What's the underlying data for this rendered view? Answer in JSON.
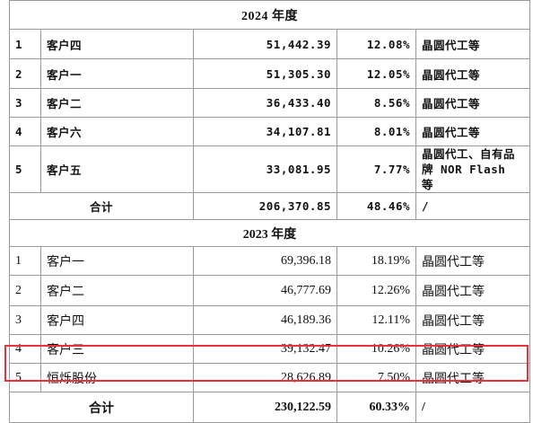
{
  "sections": [
    {
      "title": "2024 年度",
      "rows": [
        [
          "1",
          "客户四",
          "51,442.39",
          "12.08%",
          "晶圆代工等"
        ],
        [
          "2",
          "客户一",
          "51,305.30",
          "12.05%",
          "晶圆代工等"
        ],
        [
          "3",
          "客户二",
          "36,433.40",
          "8.56%",
          "晶圆代工等"
        ],
        [
          "4",
          "客户六",
          "34,107.81",
          "8.01%",
          "晶圆代工等"
        ],
        [
          "5",
          "客户五",
          "33,081.95",
          "7.77%",
          "晶圆代工、自有品牌 NOR Flash 等"
        ]
      ],
      "total": [
        "合计",
        "206,370.85",
        "48.46%",
        "/"
      ]
    },
    {
      "title": "2023 年度",
      "rows": [
        [
          "1",
          "客户一",
          "69,396.18",
          "18.19%",
          "晶圆代工等"
        ],
        [
          "2",
          "客户二",
          "46,777.69",
          "12.26%",
          "晶圆代工等"
        ],
        [
          "3",
          "客户四",
          "46,189.36",
          "12.11%",
          "晶圆代工等"
        ],
        [
          "4",
          "客户三",
          "39,132.47",
          "10.26%",
          "晶圆代工等"
        ],
        [
          "5",
          "恒烁股份",
          "28,626.89",
          "7.50%",
          "晶圆代工等"
        ]
      ],
      "total": [
        "合计",
        "230,122.59",
        "60.33%",
        "/"
      ]
    }
  ]
}
